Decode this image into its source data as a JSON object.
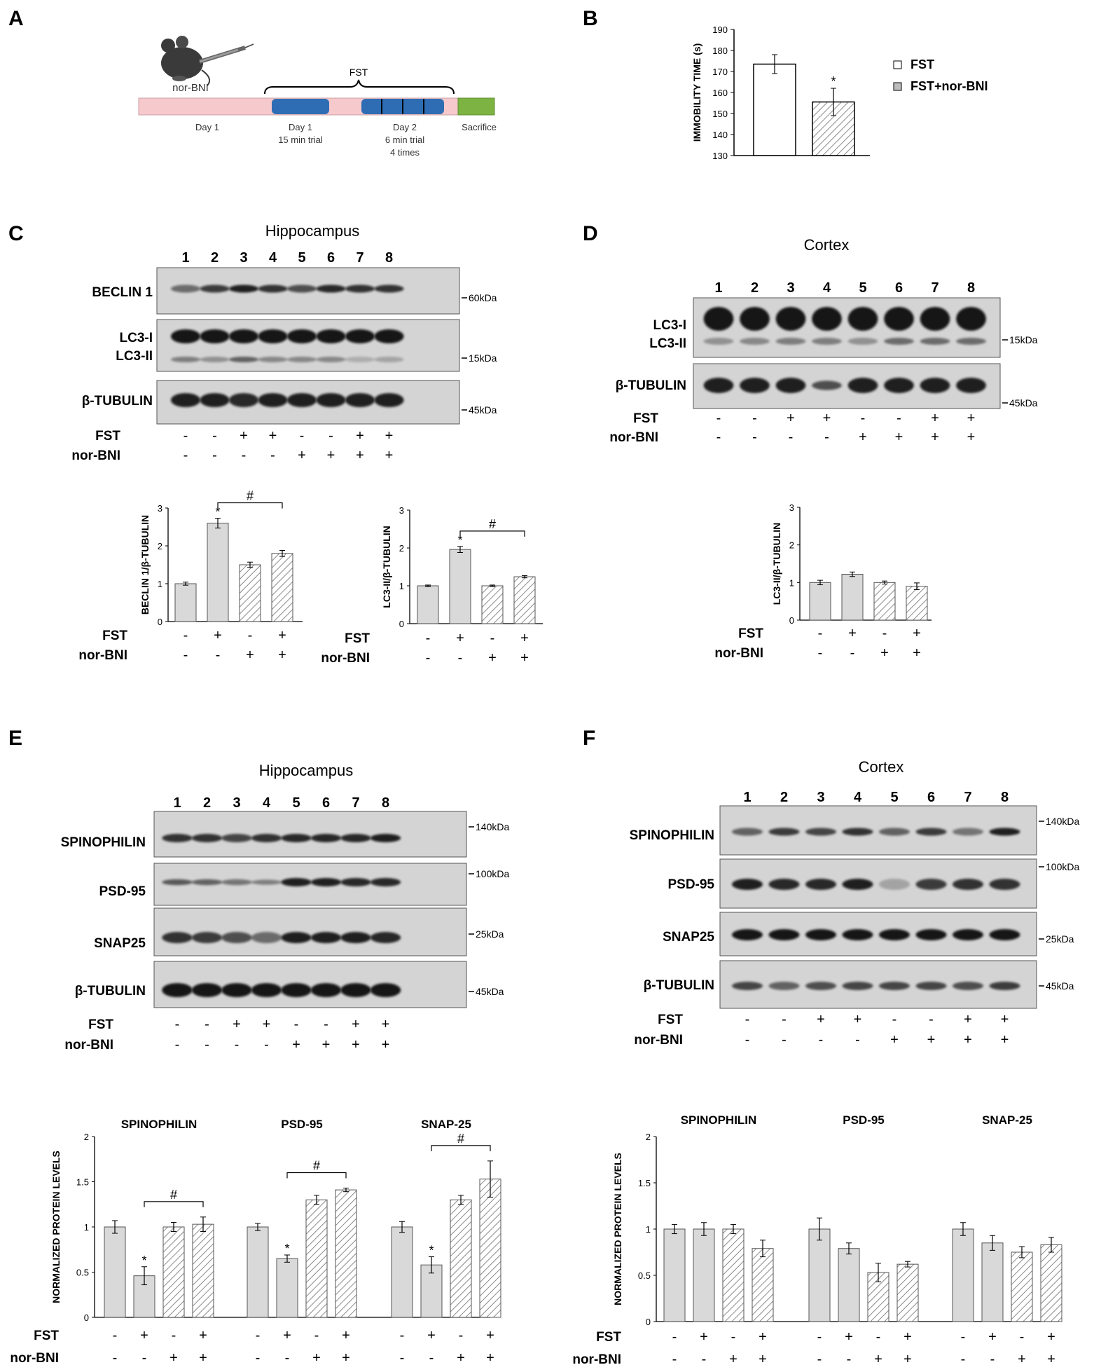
{
  "panel_labels": {
    "A": "A",
    "B": "B",
    "C": "C",
    "D": "D",
    "E": "E",
    "F": "F"
  },
  "colors": {
    "timeline_bar": "#f6c9cc",
    "timeline_trial": "#2e6db4",
    "timeline_sacrifice": "#7cb342",
    "bar_fill": "#d9d9d9",
    "hatch": "#8a8a8a",
    "blot_bg": "#d4d4d4",
    "band": "#141414"
  },
  "protocol": {
    "drug": "nor-BNI",
    "fst": "FST",
    "labels": [
      "Day 1",
      "Day 1\n15 min trial",
      "Day 2\n6 min trial\n4 times",
      "Sacrifice"
    ]
  },
  "lanes": [
    "1",
    "2",
    "3",
    "4",
    "5",
    "6",
    "7",
    "8"
  ],
  "conditions": {
    "fst_label": "FST",
    "nor_label": "nor-BNI",
    "fst8": [
      "-",
      "-",
      "+",
      "+",
      "-",
      "-",
      "+",
      "+"
    ],
    "nor8": [
      "-",
      "-",
      "-",
      "-",
      "+",
      "+",
      "+",
      "+"
    ],
    "fst4": [
      "-",
      "+",
      "-",
      "+"
    ],
    "nor4": [
      "-",
      "-",
      "+",
      "+"
    ]
  },
  "blots": {
    "C": {
      "title": "Hippocampus",
      "rows": [
        {
          "label": "BECLIN 1",
          "kda": [
            "60kDa"
          ]
        },
        {
          "label": "LC3-I\nLC3-II",
          "kda": [
            "15kDa"
          ]
        },
        {
          "label": "β-TUBULIN",
          "kda": [
            "45kDa"
          ]
        }
      ]
    },
    "D": {
      "title": "Cortex",
      "rows": [
        {
          "label": "LC3-I\nLC3-II",
          "kda": [
            "15kDa"
          ]
        },
        {
          "label": "β-TUBULIN",
          "kda": [
            "45kDa"
          ]
        }
      ]
    },
    "E": {
      "title": "Hippocampus",
      "rows": [
        {
          "label": "SPINOPHILIN",
          "kda": [
            "140kDa"
          ]
        },
        {
          "label": "PSD-95",
          "kda": [
            "100kDa"
          ]
        },
        {
          "label": "SNAP25",
          "kda": [
            "25kDa"
          ]
        },
        {
          "label": "β-TUBULIN",
          "kda": [
            "45kDa"
          ]
        }
      ]
    },
    "F": {
      "title": "Cortex",
      "rows": [
        {
          "label": "SPINOPHILIN",
          "kda": [
            "140kDa",
            "100kDa"
          ]
        },
        {
          "label": "PSD-95",
          "kda": []
        },
        {
          "label": "SNAP25",
          "kda": [
            "25kDa"
          ]
        },
        {
          "label": "β-TUBULIN",
          "kda": [
            "45kDa"
          ]
        }
      ]
    }
  },
  "chart_data": [
    {
      "id": "B",
      "type": "bar",
      "ylabel": "IMMOBILITY TIME (s)",
      "ylim": [
        130,
        190
      ],
      "yticks": [
        "130",
        "140",
        "150",
        "160",
        "170",
        "180",
        "190"
      ],
      "categories": [
        "FST",
        "FST+nor-BNI"
      ],
      "values": [
        173.5,
        155.5
      ],
      "errors": [
        4.5,
        6.5
      ],
      "legend": [
        "FST",
        "FST+nor-BNI"
      ],
      "stars": [
        false,
        true
      ],
      "star": "*"
    },
    {
      "id": "C1",
      "type": "bar",
      "ylabel": "BECLIN 1/β-TUBULIN",
      "ylim": [
        0,
        3
      ],
      "yticks": [
        "0",
        "1",
        "2",
        "3"
      ],
      "values": [
        1.0,
        2.6,
        1.5,
        1.8
      ],
      "errors": [
        0.04,
        0.13,
        0.07,
        0.08
      ],
      "stars": [
        false,
        true,
        false,
        false
      ],
      "star": "*",
      "bracket": "#"
    },
    {
      "id": "C2",
      "type": "bar",
      "ylabel": "LC3-II/β-TUBULIN",
      "ylim": [
        0,
        3
      ],
      "yticks": [
        "0",
        "1",
        "2",
        "3"
      ],
      "values": [
        1.0,
        1.96,
        1.0,
        1.24
      ],
      "errors": [
        0.02,
        0.08,
        0.02,
        0.03
      ],
      "stars": [
        false,
        true,
        false,
        false
      ],
      "star": "*",
      "bracket": "#"
    },
    {
      "id": "D1",
      "type": "bar",
      "ylabel": "LC3-II/β-TUBULIN",
      "ylim": [
        0,
        3
      ],
      "yticks": [
        "0",
        "1",
        "2",
        "3"
      ],
      "values": [
        1.0,
        1.22,
        1.0,
        0.9
      ],
      "errors": [
        0.06,
        0.06,
        0.04,
        0.09
      ]
    },
    {
      "id": "E1",
      "type": "bar",
      "ylabel": "NORMALIZED PROTEIN LEVELS",
      "ylim": [
        0,
        2
      ],
      "yticks": [
        "0",
        "0.5",
        "1",
        "1.5",
        "2"
      ],
      "groups": [
        {
          "name": "SPINOPHILIN",
          "values": [
            1.0,
            0.46,
            1.0,
            1.03
          ],
          "errors": [
            0.07,
            0.1,
            0.05,
            0.08
          ],
          "stars": [
            false,
            true,
            false,
            false
          ],
          "bracket": "#"
        },
        {
          "name": "PSD-95",
          "values": [
            1.0,
            0.65,
            1.3,
            1.41
          ],
          "errors": [
            0.04,
            0.04,
            0.05,
            0.02
          ],
          "stars": [
            false,
            true,
            false,
            false
          ],
          "bracket": "#"
        },
        {
          "name": "SNAP-25",
          "values": [
            1.0,
            0.58,
            1.3,
            1.53
          ],
          "errors": [
            0.06,
            0.09,
            0.05,
            0.2
          ],
          "stars": [
            false,
            true,
            false,
            false
          ],
          "bracket": "#"
        }
      ],
      "star": "*"
    },
    {
      "id": "F1",
      "type": "bar",
      "ylabel": "NORMALIZED PROTEIN LEVELS",
      "ylim": [
        0,
        2
      ],
      "yticks": [
        "0",
        "0.5",
        "1",
        "1.5",
        "2"
      ],
      "groups": [
        {
          "name": "SPINOPHILIN",
          "values": [
            1.0,
            1.0,
            1.0,
            0.79
          ],
          "errors": [
            0.05,
            0.07,
            0.05,
            0.09
          ]
        },
        {
          "name": "PSD-95",
          "values": [
            1.0,
            0.79,
            0.53,
            0.62
          ],
          "errors": [
            0.12,
            0.06,
            0.1,
            0.03
          ]
        },
        {
          "name": "SNAP-25",
          "values": [
            1.0,
            0.85,
            0.75,
            0.83
          ],
          "errors": [
            0.07,
            0.08,
            0.06,
            0.08
          ]
        }
      ]
    }
  ]
}
